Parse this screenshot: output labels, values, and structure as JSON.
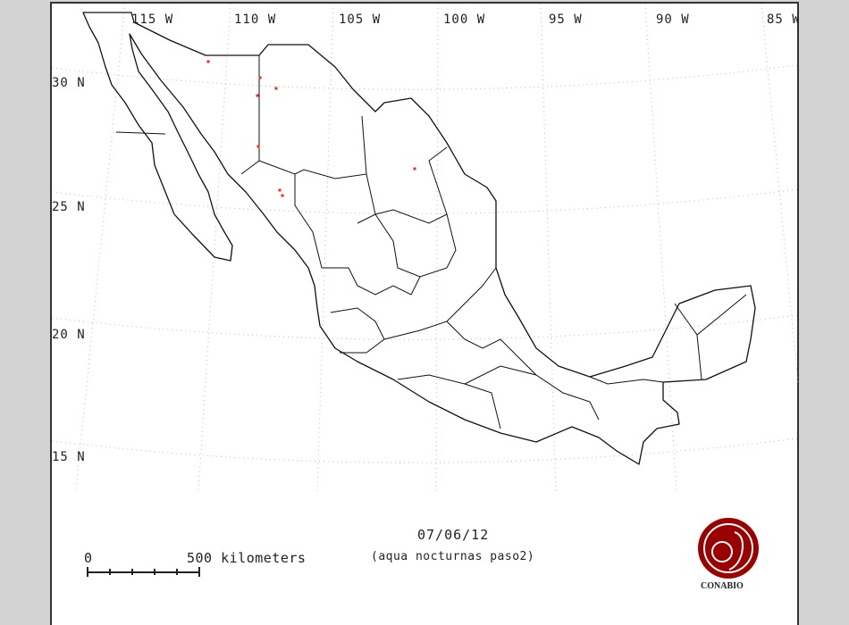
{
  "map": {
    "longitude_labels": [
      "115 W",
      "110 W",
      "105 W",
      "100 W",
      "95 W",
      "90 W",
      "85 W"
    ],
    "latitude_labels": [
      "30 N",
      "25 N",
      "20 N",
      "15 N"
    ],
    "date": "07/06/12",
    "subtitle": "(aqua nocturnas paso2)",
    "scale": {
      "start_label": "0",
      "end_label": "500 kilometers"
    },
    "logo_text": "CONABIO",
    "colors": {
      "background": "#d3d3d3",
      "outline": "#111111",
      "hotspot": "#ff2020",
      "logo": "#9b0000",
      "graticule": "#bbbbbb"
    }
  }
}
